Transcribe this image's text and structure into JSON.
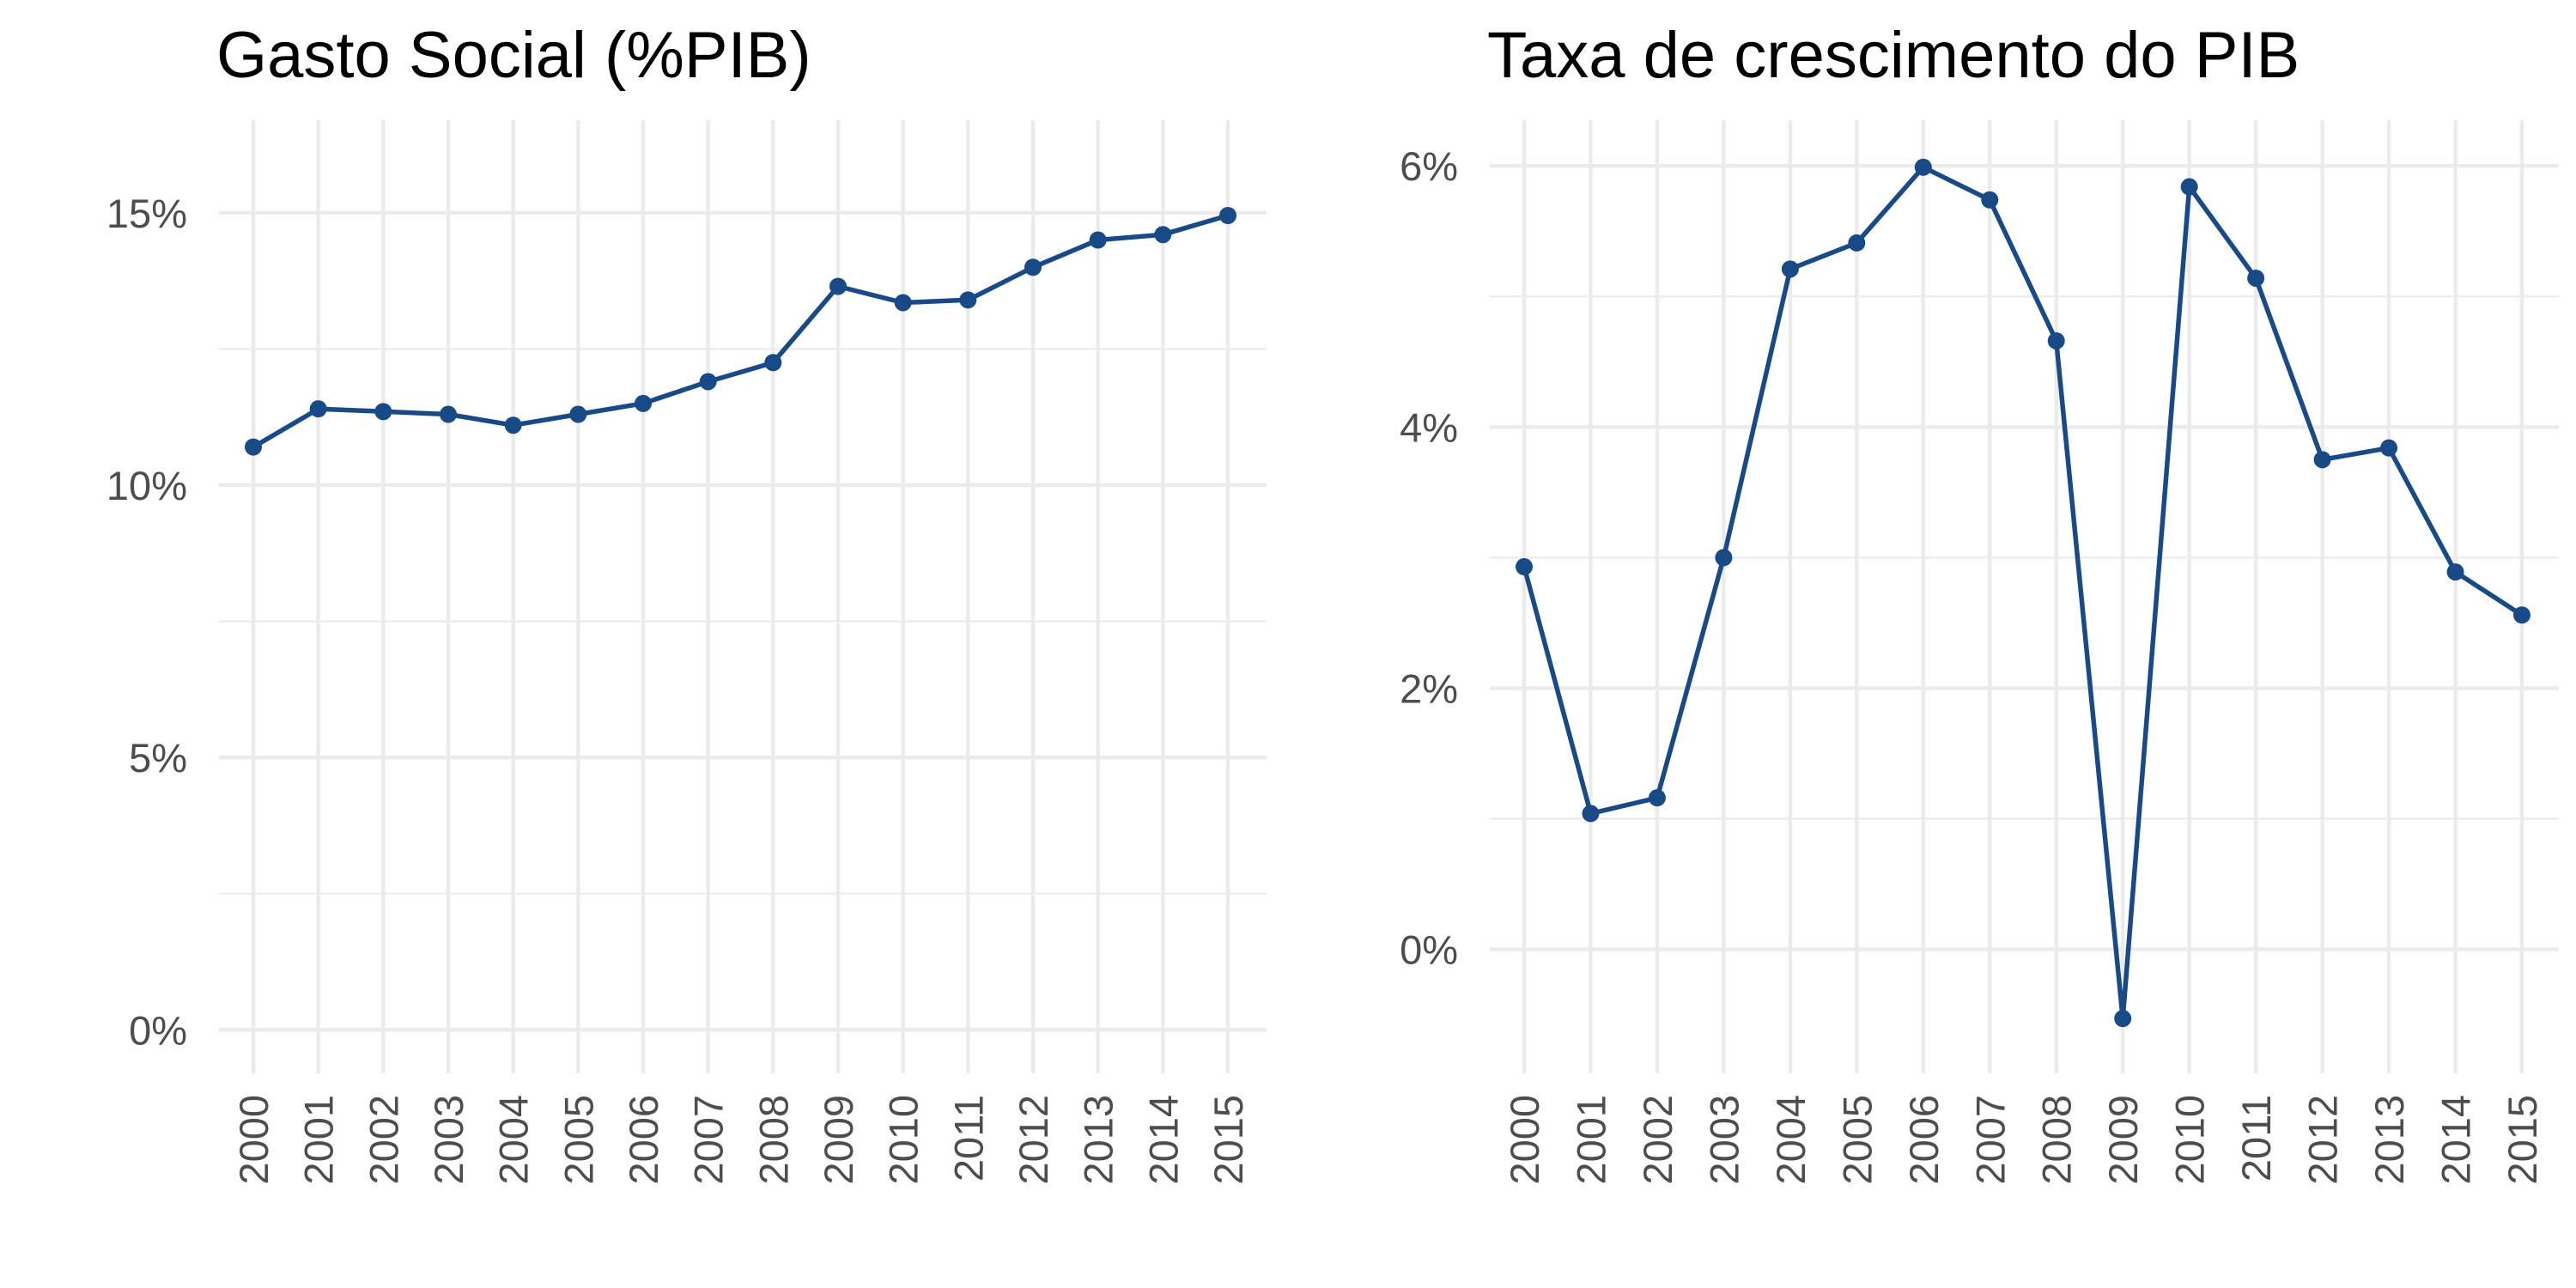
{
  "chart_data": [
    {
      "type": "line",
      "title": "Gasto Social (%PIB)",
      "xlabel": "",
      "ylabel": "",
      "categories": [
        "2000",
        "2001",
        "2002",
        "2003",
        "2004",
        "2005",
        "2006",
        "2007",
        "2008",
        "2009",
        "2010",
        "2011",
        "2012",
        "2013",
        "2014",
        "2015"
      ],
      "series": [
        {
          "values": [
            10.7,
            11.4,
            11.35,
            11.3,
            11.1,
            11.3,
            11.5,
            11.9,
            12.25,
            13.65,
            13.35,
            13.4,
            14.0,
            14.5,
            14.6,
            14.95
          ]
        }
      ],
      "ylim": [
        -0.8,
        16.7
      ],
      "y_ticks": [
        0,
        5,
        10,
        15
      ],
      "y_tick_labels": [
        "0%",
        "5%",
        "10%",
        "15%"
      ],
      "y_minor_ticks": [
        2.5,
        7.5,
        12.5
      ],
      "grid": true,
      "legend": "none"
    },
    {
      "type": "line",
      "title": "Taxa de crescimento do PIB",
      "xlabel": "",
      "ylabel": "",
      "categories": [
        "2000",
        "2001",
        "2002",
        "2003",
        "2004",
        "2005",
        "2006",
        "2007",
        "2008",
        "2009",
        "2010",
        "2011",
        "2012",
        "2013",
        "2014",
        "2015"
      ],
      "series": [
        {
          "values": [
            2.93,
            1.04,
            1.16,
            3.0,
            5.21,
            5.41,
            5.99,
            5.74,
            4.66,
            -0.53,
            5.84,
            5.14,
            3.75,
            3.84,
            2.89,
            2.56
          ]
        }
      ],
      "ylim": [
        -0.95,
        6.35
      ],
      "y_ticks": [
        0,
        2,
        4,
        6
      ],
      "y_tick_labels": [
        "0%",
        "2%",
        "4%",
        "6%"
      ],
      "y_minor_ticks": [
        1,
        3,
        5
      ],
      "grid": true,
      "legend": "none"
    }
  ],
  "style": {
    "line_color": "#174A86",
    "grid_color": "#EBEBEB",
    "text_color": "#4D4D4D",
    "title_color": "#000000",
    "background": "#FFFFFF"
  }
}
